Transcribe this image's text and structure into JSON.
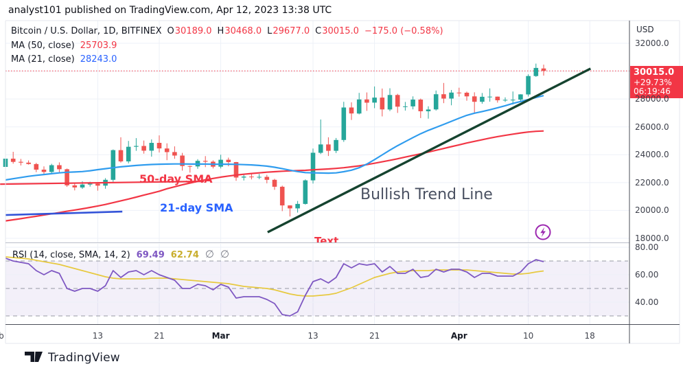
{
  "header": {
    "byline": "analyst101 published on TradingView.com, Apr 12, 2023 13:38 UTC"
  },
  "watermark": {
    "label": "TradingView"
  },
  "symbol_legend": {
    "title": "Bitcoin / U.S. Dollar, 1D, BITFINEX",
    "o_key": "O",
    "o_val": "30189.0",
    "h_key": "H",
    "h_val": "30468.0",
    "l_key": "L",
    "l_val": "29677.0",
    "c_key": "C",
    "c_val": "30015.0",
    "change": "−175.0 (−0.58%)"
  },
  "ma_legend": {
    "ma50_label": "MA (50, close)",
    "ma50_value": "25703.9",
    "ma21_label": "MA (21, close)",
    "ma21_value": "28243.0"
  },
  "rsi_legend": {
    "label": "RSI (14, close, SMA, 14, 2)",
    "rsi_value": "69.49",
    "sma_value": "62.74",
    "empty1": "∅",
    "empty2": "∅"
  },
  "price_axis": {
    "currency": "USD",
    "ticks": [
      {
        "p": 32000,
        "label": "32000.0"
      },
      {
        "p": 28000,
        "label": "28000.0"
      },
      {
        "p": 26000,
        "label": "26000.0"
      },
      {
        "p": 24000,
        "label": "24000.0"
      },
      {
        "p": 22000,
        "label": "22000.0"
      },
      {
        "p": 20000,
        "label": "20000.0"
      },
      {
        "p": 18000,
        "label": "18000.0"
      }
    ],
    "last_price_label": {
      "price": "30015.0",
      "change_pct": "+29.73%",
      "countdown": "06:19:46"
    }
  },
  "rsi_axis": {
    "ticks": [
      {
        "v": 80,
        "label": "80.00"
      },
      {
        "v": 60,
        "label": "60.00"
      },
      {
        "v": 40,
        "label": "40.00"
      }
    ]
  },
  "time_axis": {
    "ticks": [
      {
        "i": -0.54,
        "label": "b",
        "grid": false
      },
      {
        "i": 12,
        "label": "13"
      },
      {
        "i": 20,
        "label": "21"
      },
      {
        "i": 28,
        "label": "Mar",
        "major": true
      },
      {
        "i": 40,
        "label": "13"
      },
      {
        "i": 48,
        "label": "21"
      },
      {
        "i": 59,
        "label": "Apr",
        "major": true
      },
      {
        "i": 68,
        "label": "10"
      },
      {
        "i": 76,
        "label": "18"
      }
    ]
  },
  "annotations": {
    "sma50_label": "50-day SMA",
    "sma21_label": "21-day SMA",
    "trend_label": "Bullish Trend Line",
    "text_label": "Text",
    "trend_line": {
      "i1": 34.1,
      "p1": 18440,
      "i2": 76.1,
      "p2": 30180
    },
    "red_level_line": {
      "i1": -0.7,
      "p1": 21890,
      "i2": 25.8,
      "p2": 22090
    },
    "blue_level_line": {
      "i1": 0,
      "p1": 19670,
      "i2": 15.2,
      "p2": 19920
    }
  },
  "colors": {
    "up": "#26a69a",
    "down": "#ef5350",
    "ma21": "#2f9cee",
    "ma50": "#f23645",
    "trend": "#15432f",
    "level_red": "#f23645",
    "level_blue": "#3353d8",
    "rsi": "#7e57c2",
    "rsi_sma": "#e7c93f",
    "price_line": "#f23645",
    "band": "rgba(126,87,194,0.09)",
    "accent_red": "#f23645",
    "accent_blue": "#2962ff",
    "purple_icon": "#9c27b0"
  },
  "chart_data": {
    "type": "candlestick",
    "title": "Bitcoin / U.S. Dollar, 1D, BITFINEX",
    "xlabel": "",
    "ylabel": "USD",
    "x_ticks": [
      "Feb",
      "13",
      "21",
      "Mar",
      "13",
      "21",
      "Apr",
      "10",
      "18"
    ],
    "price_range": [
      18000,
      32000
    ],
    "price_gridlines": [
      32000,
      30000,
      28000,
      26000,
      24000,
      22000,
      20000,
      18000
    ],
    "last_price": 30015.0,
    "candles": [
      [
        23130,
        23810,
        23050,
        23720
      ],
      [
        23720,
        24210,
        23360,
        23490
      ],
      [
        23490,
        23700,
        23230,
        23430
      ],
      [
        23430,
        23590,
        23290,
        23330
      ],
      [
        23330,
        23420,
        22750,
        22930
      ],
      [
        22930,
        23160,
        22630,
        22760
      ],
      [
        22760,
        23350,
        22660,
        23250
      ],
      [
        23250,
        23450,
        22680,
        22960
      ],
      [
        22960,
        23010,
        21690,
        21800
      ],
      [
        21800,
        21940,
        21440,
        21650
      ],
      [
        21650,
        22090,
        21550,
        21860
      ],
      [
        21860,
        22060,
        21710,
        21920
      ],
      [
        21920,
        22010,
        21420,
        21780
      ],
      [
        21780,
        22320,
        21560,
        22200
      ],
      [
        22200,
        24380,
        22060,
        24330
      ],
      [
        24330,
        25250,
        23430,
        23520
      ],
      [
        23520,
        24990,
        23380,
        24570
      ],
      [
        24570,
        25190,
        24280,
        24630
      ],
      [
        24630,
        25020,
        24080,
        24290
      ],
      [
        24290,
        25100,
        23860,
        24850
      ],
      [
        24850,
        25390,
        24160,
        24450
      ],
      [
        24450,
        24820,
        23610,
        24190
      ],
      [
        24190,
        24600,
        23710,
        23940
      ],
      [
        23940,
        24130,
        22860,
        23190
      ],
      [
        23190,
        23220,
        22720,
        23160
      ],
      [
        23160,
        23680,
        22990,
        23560
      ],
      [
        23560,
        23900,
        23110,
        23500
      ],
      [
        23500,
        23600,
        23020,
        23140
      ],
      [
        23140,
        24000,
        23020,
        23640
      ],
      [
        23640,
        23790,
        23170,
        23470
      ],
      [
        23470,
        23480,
        22130,
        22360
      ],
      [
        22360,
        22570,
        22150,
        22430
      ],
      [
        22430,
        22660,
        22230,
        22410
      ],
      [
        22410,
        22620,
        22250,
        22410
      ],
      [
        22410,
        22560,
        21950,
        22200
      ],
      [
        22200,
        22270,
        21480,
        21700
      ],
      [
        21700,
        21780,
        19950,
        20360
      ],
      [
        20360,
        20370,
        19570,
        20150
      ],
      [
        20150,
        20680,
        19850,
        20470
      ],
      [
        20470,
        22230,
        20420,
        22160
      ],
      [
        22160,
        24450,
        21930,
        24140
      ],
      [
        24140,
        26530,
        24050,
        24740
      ],
      [
        24740,
        25250,
        23910,
        24280
      ],
      [
        24280,
        25200,
        24120,
        25060
      ],
      [
        25060,
        27800,
        24920,
        27390
      ],
      [
        27390,
        27760,
        26500,
        26960
      ],
      [
        26960,
        28440,
        26900,
        27970
      ],
      [
        27970,
        28470,
        27150,
        27740
      ],
      [
        27740,
        28900,
        27340,
        28100
      ],
      [
        28100,
        28750,
        26750,
        27250
      ],
      [
        27250,
        28770,
        27130,
        28290
      ],
      [
        28290,
        28370,
        27000,
        27450
      ],
      [
        27450,
        27790,
        27170,
        27470
      ],
      [
        27470,
        28190,
        27260,
        27960
      ],
      [
        27960,
        28030,
        26630,
        27120
      ],
      [
        27120,
        27480,
        26590,
        27250
      ],
      [
        27250,
        28610,
        27170,
        28340
      ],
      [
        28340,
        29150,
        27700,
        28030
      ],
      [
        28030,
        28650,
        27550,
        28460
      ],
      [
        28460,
        28810,
        28170,
        28450
      ],
      [
        28450,
        28530,
        27880,
        28190
      ],
      [
        28190,
        28480,
        26940,
        27800
      ],
      [
        27800,
        28430,
        27660,
        28160
      ],
      [
        28160,
        28760,
        27810,
        28170
      ],
      [
        28170,
        28180,
        27740,
        27910
      ],
      [
        27910,
        28120,
        27790,
        27940
      ],
      [
        27940,
        28540,
        27600,
        27950
      ],
      [
        27950,
        28340,
        27810,
        28330
      ],
      [
        28330,
        29770,
        28180,
        29650
      ],
      [
        29650,
        30540,
        29590,
        30230
      ],
      [
        30189,
        30468,
        29677,
        30015
      ]
    ],
    "ma21": [
      22190,
      22280,
      22370,
      22450,
      22520,
      22580,
      22640,
      22700,
      22740,
      22760,
      22790,
      22850,
      22930,
      23000,
      23070,
      23130,
      23180,
      23230,
      23270,
      23300,
      23320,
      23330,
      23340,
      23340,
      23330,
      23330,
      23330,
      23320,
      23320,
      23320,
      23310,
      23290,
      23270,
      23230,
      23180,
      23100,
      23000,
      22890,
      22790,
      22720,
      22700,
      22690,
      22680,
      22700,
      22780,
      22890,
      23070,
      23330,
      23650,
      23990,
      24330,
      24650,
      24940,
      25230,
      25510,
      25750,
      25960,
      26180,
      26400,
      26620,
      26830,
      26980,
      27100,
      27230,
      27370,
      27520,
      27680,
      27820,
      27960,
      28110,
      28243
    ],
    "ma50": [
      19250,
      19330,
      19410,
      19500,
      19580,
      19670,
      19760,
      19850,
      19940,
      20030,
      20120,
      20220,
      20320,
      20430,
      20560,
      20690,
      20820,
      20960,
      21100,
      21240,
      21380,
      21560,
      21700,
      21840,
      21970,
      22090,
      22200,
      22300,
      22390,
      22470,
      22540,
      22600,
      22655,
      22700,
      22745,
      22780,
      22815,
      22840,
      22865,
      22880,
      22920,
      22950,
      22980,
      23020,
      23070,
      23130,
      23200,
      23290,
      23390,
      23490,
      23600,
      23710,
      23830,
      23950,
      24070,
      24190,
      24320,
      24450,
      24580,
      24710,
      24840,
      24960,
      25080,
      25190,
      25300,
      25390,
      25480,
      25560,
      25630,
      25680,
      25704
    ],
    "rsi": [
      72,
      70,
      69,
      68,
      63,
      60,
      63,
      61,
      50,
      48,
      50,
      50,
      48,
      52,
      63,
      58,
      62,
      63,
      60,
      63,
      60,
      58,
      56,
      50,
      50,
      53,
      52,
      49,
      53,
      51,
      43,
      44,
      44,
      44,
      42,
      39,
      31,
      30,
      33,
      45,
      55,
      57,
      54,
      58,
      68,
      65,
      68,
      67,
      68,
      62,
      66,
      61,
      61,
      64,
      58,
      59,
      64,
      62,
      64,
      64,
      62,
      58,
      61,
      61,
      59,
      59,
      59,
      62,
      68,
      71,
      69.49
    ],
    "rsi_sma": [
      73,
      72.5,
      72,
      71.5,
      70.5,
      69.5,
      68.5,
      67.5,
      66,
      64.5,
      63,
      61.5,
      60,
      58.5,
      57.5,
      57,
      57,
      57,
      57,
      57.5,
      57.5,
      57.5,
      57,
      56.5,
      56,
      55.5,
      55,
      54.5,
      54,
      53.5,
      52.5,
      51.5,
      51,
      50.5,
      50,
      49,
      47.5,
      46,
      45,
      44.5,
      44.5,
      45,
      45.5,
      46.5,
      48.5,
      50.5,
      53,
      55.5,
      58,
      59.5,
      61,
      62,
      62.5,
      63,
      63,
      63,
      63.5,
      63.5,
      63.5,
      63.5,
      63.5,
      63,
      62.5,
      62,
      61.5,
      61,
      60.5,
      60.5,
      61,
      62,
      62.74
    ],
    "rsi_gridlines": [
      80,
      60,
      40
    ],
    "rsi_levels": {
      "upper": 70,
      "middle": 50,
      "lower": 30
    }
  }
}
